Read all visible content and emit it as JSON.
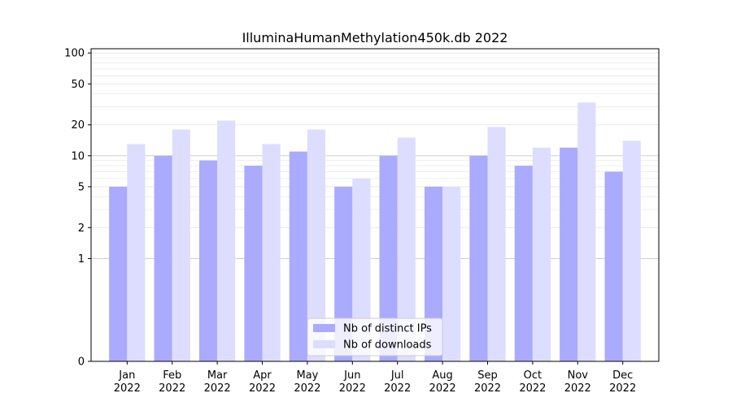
{
  "chart_data": {
    "type": "bar",
    "title": "IlluminaHumanMethylation450k.db 2022",
    "xlabel": "",
    "ylabel": "",
    "y_scale": "symlog",
    "ylim": [
      0,
      110
    ],
    "y_ticks": [
      0,
      1,
      2,
      5,
      10,
      20,
      50,
      100
    ],
    "grid": true,
    "legend_position": "bottom-center",
    "categories": [
      [
        "Jan",
        "2022"
      ],
      [
        "Feb",
        "2022"
      ],
      [
        "Mar",
        "2022"
      ],
      [
        "Apr",
        "2022"
      ],
      [
        "May",
        "2022"
      ],
      [
        "Jun",
        "2022"
      ],
      [
        "Jul",
        "2022"
      ],
      [
        "Aug",
        "2022"
      ],
      [
        "Sep",
        "2022"
      ],
      [
        "Oct",
        "2022"
      ],
      [
        "Nov",
        "2022"
      ],
      [
        "Dec",
        "2022"
      ]
    ],
    "series": [
      {
        "name": "Nb of distinct IPs",
        "color": "#aaaaff",
        "values": [
          5,
          10,
          9,
          8,
          11,
          5,
          10,
          5,
          10,
          8,
          12,
          7
        ]
      },
      {
        "name": "Nb of downloads",
        "color": "#ddddff",
        "values": [
          13,
          18,
          22,
          13,
          18,
          6,
          15,
          5,
          19,
          12,
          33,
          14
        ]
      }
    ]
  }
}
